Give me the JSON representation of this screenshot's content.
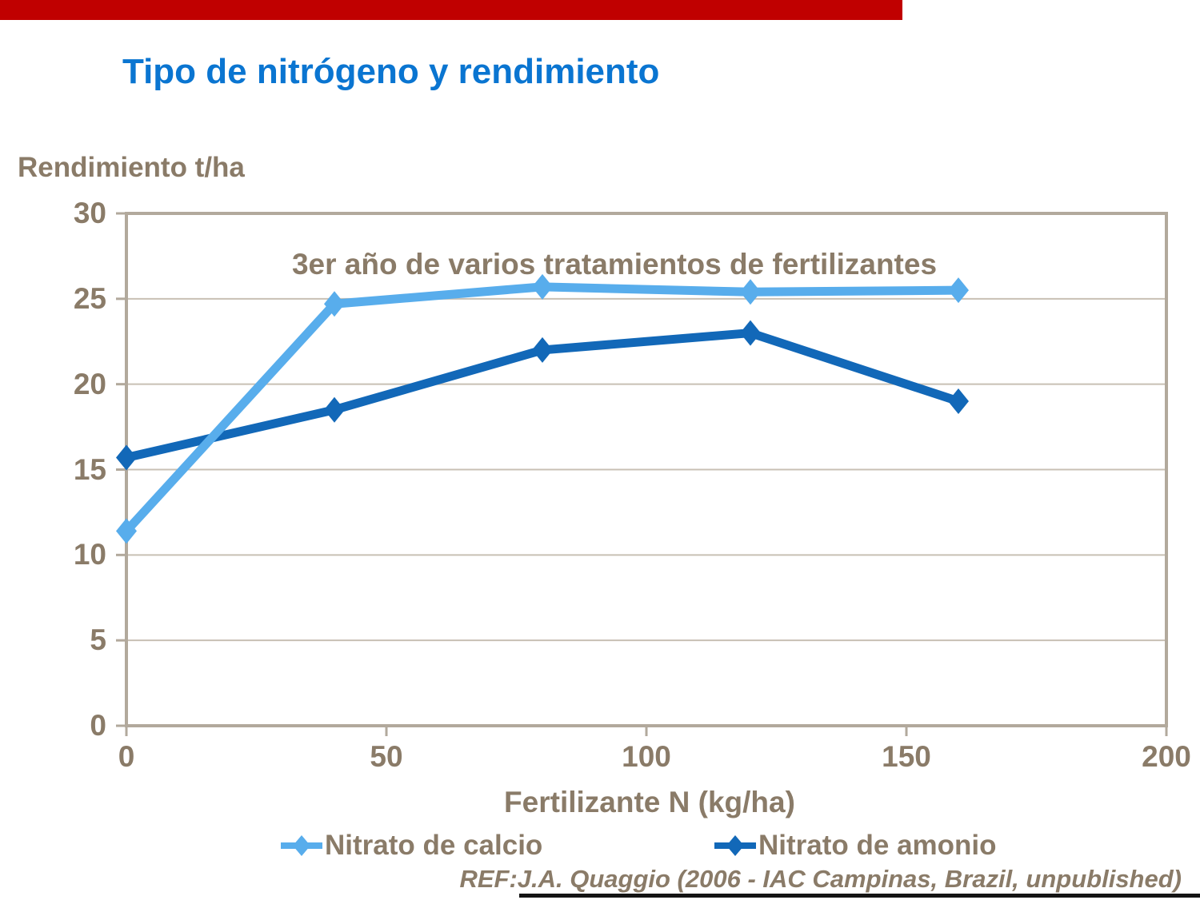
{
  "slide": {
    "title": "Tipo de nitrógeno y rendimiento",
    "reference": "REF:J.A. Quaggio (2006 - IAC Campinas, Brazil, unpublished)"
  },
  "colors": {
    "title_blue": "#0a75d1",
    "text_taupe": "#8a7b68",
    "gridline": "#c8c0b4",
    "plot_border": "#b2a99c",
    "series_calcio": "#58adec",
    "series_amonio": "#1268b8",
    "top_bar_red": "#c00000",
    "bottom_line_black": "#141414"
  },
  "chart_data": {
    "type": "line",
    "title": "Tipo de nitrógeno y rendimiento",
    "subtitle": "3er año de varios tratamientos de fertilizantes",
    "xlabel": "Fertilizante N (kg/ha)",
    "ylabel": "Rendimiento t/ha",
    "x": [
      0,
      40,
      80,
      120,
      160
    ],
    "series": [
      {
        "name": "Nitrato de calcio",
        "values": [
          11.4,
          24.7,
          25.7,
          25.4,
          25.5
        ]
      },
      {
        "name": "Nitrato de amonio",
        "values": [
          15.7,
          18.5,
          22.0,
          23.0,
          19.0
        ]
      }
    ],
    "xlim": [
      0,
      200
    ],
    "ylim": [
      0,
      30
    ],
    "x_ticks": [
      0,
      50,
      100,
      150,
      200
    ],
    "y_ticks": [
      0,
      5,
      10,
      15,
      20,
      25,
      30
    ],
    "grid": "horizontal",
    "marker": "diamond",
    "legend_position": "bottom"
  }
}
